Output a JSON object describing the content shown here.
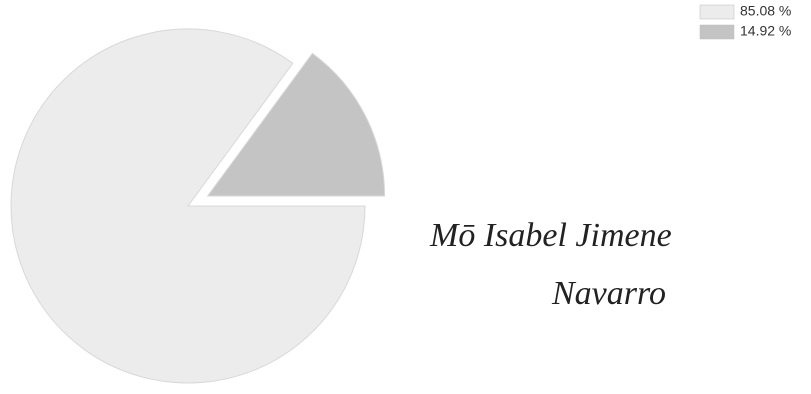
{
  "chart_data": {
    "type": "pie",
    "values": [
      85.08,
      14.92
    ],
    "value_labels": [
      "85.08 %",
      "14.92 %"
    ],
    "colors": [
      "#ececec",
      "#c4c4c4"
    ],
    "annotations": [
      "Mō Isabel Jimene",
      "Navarro"
    ]
  }
}
